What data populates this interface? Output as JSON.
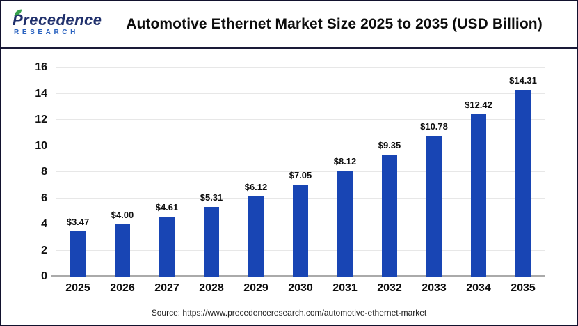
{
  "header": {
    "logo": {
      "brand": "Precedence",
      "sub": "RESEARCH"
    },
    "title": "Automotive Ethernet Market Size 2025 to 2035 (USD Billion)"
  },
  "chart_data": {
    "type": "bar",
    "title": "Automotive Ethernet Market Size 2025 to 2035 (USD Billion)",
    "categories": [
      "2025",
      "2026",
      "2027",
      "2028",
      "2029",
      "2030",
      "2031",
      "2032",
      "2033",
      "2034",
      "2035"
    ],
    "values": [
      3.47,
      4.0,
      4.61,
      5.31,
      6.12,
      7.05,
      8.12,
      9.35,
      10.78,
      12.42,
      14.31
    ],
    "value_labels": [
      "$3.47",
      "$4.00",
      "$4.61",
      "$5.31",
      "$6.12",
      "$7.05",
      "$8.12",
      "$9.35",
      "$10.78",
      "$12.42",
      "$14.31"
    ],
    "xlabel": "",
    "ylabel": "",
    "ylim": [
      0,
      16
    ],
    "yticks": [
      0,
      2,
      4,
      6,
      8,
      10,
      12,
      14,
      16
    ],
    "grid": true,
    "legend": false,
    "bar_color": "#1845b4"
  },
  "footer": {
    "source": "Source: https://www.precedenceresearch.com/automotive-ethernet-market"
  },
  "colors": {
    "bar": "#1845b4",
    "frame_border": "#12122e",
    "header_rule": "#1a1a38",
    "gridline": "#e7e7e7",
    "axis_line": "#aaaaaa",
    "logo_navy": "#20306c",
    "logo_blue": "#2a62c0",
    "leaf_green": "#36a14b"
  }
}
